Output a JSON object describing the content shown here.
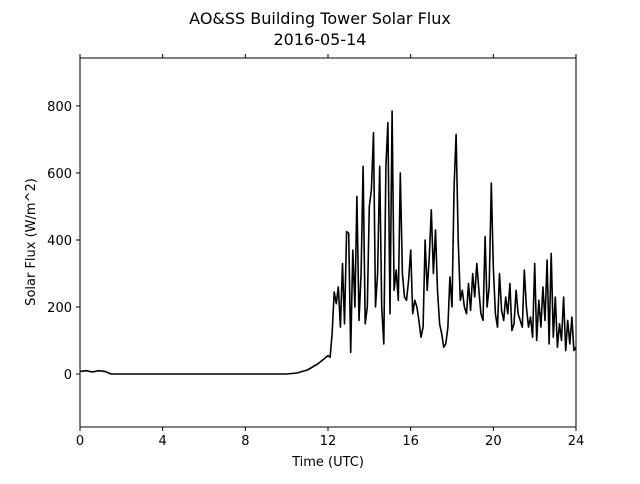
{
  "chart_data": {
    "type": "line",
    "title": "AO&SS Building Tower Solar Flux",
    "subtitle": "2016-05-14",
    "x_label": "Time (UTC)",
    "y_label": "Solar Flux (W/m^2)",
    "x": [
      0,
      0.3,
      0.6,
      0.9,
      1.2,
      1.5,
      2,
      4,
      6,
      8,
      10,
      10.5,
      11,
      11.5,
      11.8,
      12.0,
      12.1,
      12.2,
      12.3,
      12.4,
      12.5,
      12.6,
      12.7,
      12.8,
      12.9,
      13.0,
      13.1,
      13.2,
      13.3,
      13.4,
      13.5,
      13.6,
      13.7,
      13.8,
      13.9,
      14.0,
      14.1,
      14.2,
      14.3,
      14.4,
      14.5,
      14.6,
      14.7,
      14.8,
      14.9,
      15.0,
      15.1,
      15.2,
      15.3,
      15.4,
      15.5,
      15.6,
      15.7,
      15.8,
      15.9,
      16.0,
      16.1,
      16.2,
      16.3,
      16.4,
      16.5,
      16.6,
      16.7,
      16.8,
      16.9,
      17.0,
      17.1,
      17.2,
      17.3,
      17.4,
      17.5,
      17.6,
      17.7,
      17.8,
      17.9,
      18.0,
      18.1,
      18.2,
      18.3,
      18.4,
      18.5,
      18.6,
      18.7,
      18.8,
      18.9,
      19.0,
      19.1,
      19.2,
      19.3,
      19.4,
      19.5,
      19.6,
      19.7,
      19.8,
      19.9,
      20.0,
      20.1,
      20.2,
      20.3,
      20.4,
      20.5,
      20.6,
      20.7,
      20.8,
      20.9,
      21.0,
      21.1,
      21.2,
      21.3,
      21.4,
      21.5,
      21.6,
      21.7,
      21.8,
      21.9,
      22.0,
      22.1,
      22.2,
      22.3,
      22.4,
      22.5,
      22.6,
      22.7,
      22.8,
      22.9,
      23.0,
      23.1,
      23.2,
      23.3,
      23.4,
      23.5,
      23.6,
      23.7,
      23.8,
      23.9,
      24.0
    ],
    "series": [
      {
        "name": "Solar Flux",
        "color": "#000000",
        "values": [
          8,
          10,
          6,
          10,
          8,
          0,
          0,
          0,
          0,
          0,
          0,
          3,
          12,
          30,
          45,
          55,
          50,
          120,
          245,
          210,
          260,
          140,
          330,
          150,
          425,
          420,
          65,
          370,
          200,
          530,
          160,
          300,
          620,
          150,
          200,
          500,
          550,
          720,
          200,
          300,
          620,
          200,
          90,
          620,
          750,
          180,
          785,
          250,
          310,
          220,
          600,
          300,
          230,
          220,
          280,
          370,
          180,
          220,
          200,
          160,
          110,
          140,
          400,
          250,
          350,
          490,
          300,
          430,
          250,
          150,
          120,
          80,
          90,
          140,
          290,
          200,
          560,
          715,
          400,
          220,
          250,
          200,
          180,
          270,
          190,
          300,
          230,
          330,
          250,
          180,
          160,
          410,
          200,
          260,
          570,
          320,
          180,
          140,
          300,
          190,
          160,
          230,
          180,
          270,
          130,
          150,
          250,
          180,
          160,
          140,
          310,
          200,
          140,
          170,
          110,
          330,
          100,
          220,
          140,
          260,
          160,
          340,
          90,
          360,
          110,
          230,
          80,
          150,
          100,
          230,
          70,
          160,
          90,
          170,
          70,
          80
        ]
      }
    ],
    "xlim": [
      0,
      24
    ],
    "xticks": [
      0,
      4,
      8,
      12,
      16,
      20,
      24
    ],
    "ylim": [
      -158,
      943
    ],
    "yticks": [
      0,
      200,
      400,
      600,
      800
    ]
  }
}
